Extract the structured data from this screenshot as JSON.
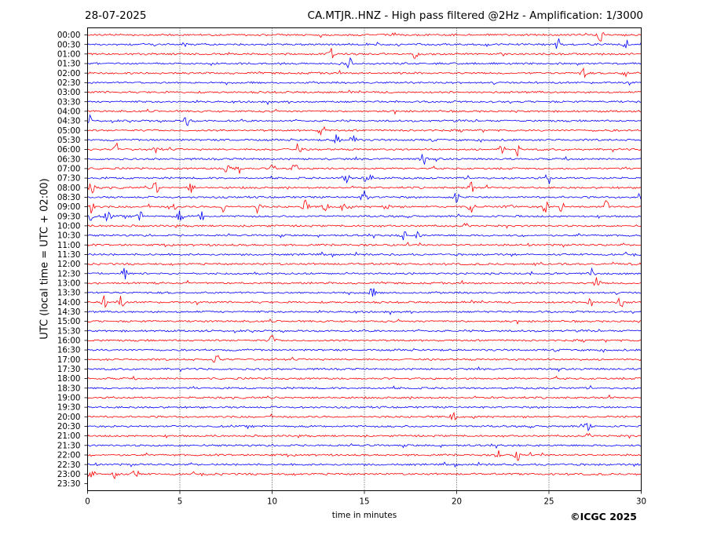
{
  "header": {
    "date": "28-07-2025",
    "title": "CA.MTJR..HNZ - High pass filtered @2Hz - Amplification: 1/3000"
  },
  "chart_data": {
    "type": "line",
    "title": "CA.MTJR..HNZ - High pass filtered @2Hz - Amplification: 1/3000",
    "xlabel": "time in minutes",
    "ylabel": "UTC (local time = UTC + 02:00)",
    "xlim": [
      0,
      30
    ],
    "x_ticks": [
      0,
      5,
      10,
      15,
      20,
      25,
      30
    ],
    "grid": "vertical dotted at 5-minute intervals",
    "row_labels": [
      "00:00",
      "00:30",
      "01:00",
      "01:30",
      "02:00",
      "02:30",
      "03:00",
      "03:30",
      "04:00",
      "04:30",
      "05:00",
      "05:30",
      "06:00",
      "06:30",
      "07:00",
      "07:30",
      "08:00",
      "08:30",
      "09:00",
      "09:30",
      "10:00",
      "10:30",
      "11:00",
      "11:30",
      "12:00",
      "12:30",
      "13:00",
      "13:30",
      "14:00",
      "14:30",
      "15:00",
      "15:30",
      "16:00",
      "16:30",
      "17:00",
      "17:30",
      "18:00",
      "18:30",
      "19:00",
      "19:30",
      "20:00",
      "20:30",
      "21:00",
      "21:30",
      "22:00",
      "22:30",
      "23:00",
      "23:30"
    ],
    "trace_count": 47,
    "trace_colors": [
      "#ff0000",
      "#0000ff"
    ],
    "events": [
      {
        "row": "00:00",
        "minutes": [
          27.8
        ]
      },
      {
        "row": "00:30",
        "minutes": [
          25.5,
          29.2
        ]
      },
      {
        "row": "01:00",
        "minutes": [
          13.2,
          17.8
        ]
      },
      {
        "row": "01:30",
        "minutes": [
          14.2
        ]
      },
      {
        "row": "02:00",
        "minutes": [
          26.9,
          29.1
        ]
      },
      {
        "row": "04:30",
        "minutes": [
          0.1,
          5.4
        ]
      },
      {
        "row": "05:00",
        "minutes": [
          12.7
        ]
      },
      {
        "row": "05:30",
        "minutes": [
          13.5,
          14.4
        ]
      },
      {
        "row": "06:00",
        "minutes": [
          1.6,
          3.8,
          11.4,
          22.4,
          23.3
        ]
      },
      {
        "row": "06:30",
        "minutes": [
          18.2
        ]
      },
      {
        "row": "07:00",
        "minutes": [
          7.6,
          8.2,
          10.1,
          11.2
        ]
      },
      {
        "row": "07:30",
        "minutes": [
          14.0,
          15.1,
          15.4,
          25.0
        ]
      },
      {
        "row": "08:00",
        "minutes": [
          0.2,
          3.7,
          5.6,
          20.8
        ]
      },
      {
        "row": "08:30",
        "minutes": [
          15.0,
          20.0,
          29.9
        ]
      },
      {
        "row": "09:00",
        "minutes": [
          0.2,
          4.6,
          7.4,
          9.2,
          11.8,
          12.9,
          13.9,
          16.2,
          20.8,
          22.8,
          24.8,
          25.7,
          28.1
        ]
      },
      {
        "row": "09:30",
        "minutes": [
          0.1,
          1.1,
          2.8,
          5.0,
          6.2
        ]
      },
      {
        "row": "10:30",
        "minutes": [
          17.1,
          18.0
        ]
      },
      {
        "row": "12:30",
        "minutes": [
          2.0,
          27.3
        ]
      },
      {
        "row": "13:00",
        "minutes": [
          27.6
        ]
      },
      {
        "row": "13:30",
        "minutes": [
          15.4
        ]
      },
      {
        "row": "14:00",
        "minutes": [
          0.9,
          1.8,
          27.2,
          28.9
        ]
      },
      {
        "row": "16:00",
        "minutes": [
          10.0
        ]
      },
      {
        "row": "17:00",
        "minutes": [
          7.0
        ]
      },
      {
        "row": "20:00",
        "minutes": [
          19.8
        ]
      },
      {
        "row": "20:30",
        "minutes": [
          27.1
        ]
      },
      {
        "row": "22:00",
        "minutes": [
          22.3,
          23.3
        ]
      },
      {
        "row": "23:00",
        "minutes": [
          0.2,
          1.5,
          2.6
        ]
      }
    ]
  },
  "footer": {
    "copyright": "©ICGC 2025"
  }
}
